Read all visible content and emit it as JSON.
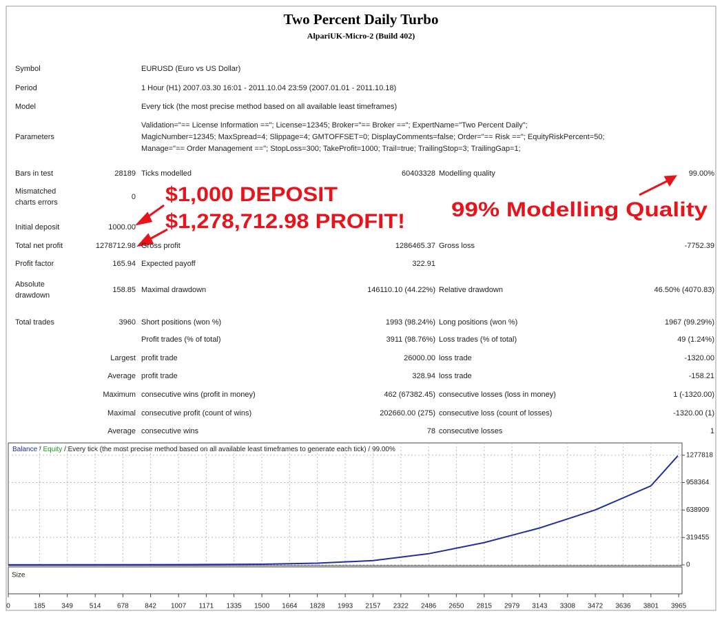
{
  "header": {
    "title": "Two Percent Daily Turbo",
    "subtitle": "AlpariUK-Micro-2 (Build 402)"
  },
  "info": [
    {
      "label": "Symbol",
      "lines": [
        "EURUSD (Euro vs US Dollar)"
      ]
    },
    {
      "label": "Period",
      "lines": [
        "1 Hour (H1) 2007.03.30 16:01 - 2011.10.04 23:59 (2007.01.01 - 2011.10.18)"
      ]
    },
    {
      "label": "Model",
      "lines": [
        "Every tick (the most precise method based on all available least timeframes)"
      ]
    },
    {
      "label": "Parameters",
      "lines": [
        "Validation=\"== License Information ==\"; License=12345; Broker=\"== Broker ==\"; ExpertName=\"Two Percent Daily\";",
        "MagicNumber=12345; MaxSpread=4; Slippage=4; GMTOFFSET=0; DisplayComments=false; Order=\"== Risk ==\"; EquityRiskPercent=50;",
        "Manage=\"== Order Management ==\"; StopLoss=300; TakeProfit=1000; Trail=true; TrailingStop=3; TrailingGap=1;"
      ]
    }
  ],
  "stats": [
    {
      "label": [
        "Bars in test"
      ],
      "v1": "28189",
      "l2": "Ticks modelled",
      "v2": "60403328",
      "l3": "Modelling quality",
      "v3": "99.00%"
    },
    {
      "label": [
        "Mismatched",
        "charts errors"
      ],
      "v1": "0"
    },
    {
      "label": [
        "Initial deposit"
      ],
      "v1": "1000.00"
    },
    {
      "label": [
        "Total net profit"
      ],
      "v1": "1278712.98",
      "l2": "Gross profit",
      "v2": "1286465.37",
      "l3": "Gross loss",
      "v3": "-7752.39"
    },
    {
      "label": [
        "Profit factor"
      ],
      "v1": "165.94",
      "l2": "Expected payoff",
      "v2": "322.91"
    },
    {
      "label": [
        "Absolute",
        "drawdown"
      ],
      "v1": "158.85",
      "l2": "Maximal drawdown",
      "v2": "146110.10 (44.22%)",
      "l3": "Relative drawdown",
      "v3": "46.50% (4070.83)"
    },
    {
      "label": [
        "Total trades"
      ],
      "v1": "3960",
      "l2": "Short positions (won %)",
      "v2": "1993 (98.24%)",
      "l3": "Long positions (won %)",
      "v3": "1967 (99.29%)"
    },
    {
      "l2": "Profit trades (% of total)",
      "v2": "3911 (98.76%)",
      "l3": "Loss trades (% of total)",
      "v3": "49 (1.24%)"
    },
    {
      "v1": "Largest",
      "l2": "profit trade",
      "v2": "26000.00",
      "l3": "loss trade",
      "v3": "-1320.00"
    },
    {
      "v1": "Average",
      "l2": "profit trade",
      "v2": "328.94",
      "l3": "loss trade",
      "v3": "-158.21"
    },
    {
      "v1": "Maximum",
      "l2": "consecutive wins (profit in money)",
      "v2": "462 (67382.45)",
      "l3": "consecutive losses (loss in money)",
      "v3": "1 (-1320.00)"
    },
    {
      "v1": "Maximal",
      "l2": "consecutive profit (count of wins)",
      "v2": "202660.00 (275)",
      "l3": "consecutive loss (count of losses)",
      "v3": "-1320.00 (1)"
    },
    {
      "v1": "Average",
      "l2": "consecutive wins",
      "v2": "78",
      "l3": "consecutive losses",
      "v3": "1"
    }
  ],
  "annotations": {
    "deposit": "$1,000 DEPOSIT",
    "profit": "$1,278,712.98 PROFIT!",
    "quality": "99% Modelling Quality"
  },
  "chart": {
    "type": "line",
    "legend": {
      "balance": "Balance",
      "sep": "/",
      "equity": "Equity",
      "rest": "/ Every tick (the most precise method based on all available least timeframes to generate each tick) / 99.00%"
    },
    "size_label": "Size",
    "x": [
      0,
      500,
      1000,
      1500,
      1828,
      2157,
      2486,
      2815,
      3143,
      3472,
      3801,
      3960
    ],
    "series": [
      {
        "name": "Balance",
        "color": "#1f2fa0",
        "values": [
          1000,
          1500,
          3000,
          8000,
          20000,
          50000,
          130000,
          260000,
          430000,
          640000,
          920000,
          1270000
        ]
      }
    ],
    "xlim": [
      0,
      3985
    ],
    "ylim": [
      0,
      1420000
    ],
    "xticks": [
      0,
      185,
      349,
      514,
      678,
      842,
      1007,
      1171,
      1335,
      1500,
      1664,
      1828,
      1993,
      2157,
      2322,
      2486,
      2650,
      2815,
      2979,
      3143,
      3308,
      3472,
      3636,
      3801,
      3965
    ],
    "yticks": [
      0,
      319455,
      638909,
      958364,
      1277818
    ],
    "grid": true
  }
}
